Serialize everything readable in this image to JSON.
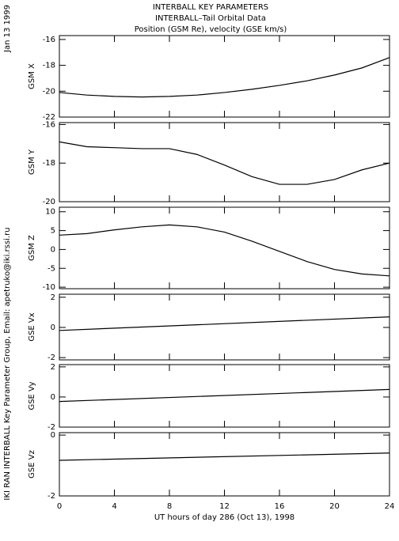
{
  "header": {
    "title": "INTERBALL KEY PARAMETERS",
    "subtitle": "INTERBALL–Tail Orbital Data",
    "description": "Position (GSM Re), velocity (GSE km/s)",
    "date": "Jan 13 1999",
    "credit": "IKI RAN INTERBALL Key Parameter Group, Email: apetruko@iki.rssi.ru"
  },
  "chart_data": [
    {
      "type": "line",
      "y_label": "GSM X",
      "x": [
        0,
        2,
        4,
        6,
        8,
        10,
        12,
        14,
        16,
        18,
        20,
        22,
        24
      ],
      "values": [
        -20.1,
        -20.3,
        -20.4,
        -20.45,
        -20.4,
        -20.3,
        -20.1,
        -19.85,
        -19.55,
        -19.2,
        -18.75,
        -18.2,
        -17.4
      ],
      "xlim": [
        0,
        24
      ],
      "xticks": [
        0,
        4,
        8,
        12,
        16,
        20,
        24
      ],
      "ylim": [
        -22,
        -15.7
      ],
      "yticks": [
        -16,
        -18,
        -20,
        -22
      ],
      "color": "#000000"
    },
    {
      "type": "line",
      "y_label": "GSM Y",
      "x": [
        0,
        2,
        4,
        6,
        8,
        10,
        12,
        14,
        16,
        18,
        20,
        22,
        24
      ],
      "values": [
        -16.9,
        -17.15,
        -17.2,
        -17.25,
        -17.25,
        -17.55,
        -18.1,
        -18.7,
        -19.1,
        -19.1,
        -18.85,
        -18.35,
        -18.0
      ],
      "xlim": [
        0,
        24
      ],
      "xticks": [
        0,
        4,
        8,
        12,
        16,
        20,
        24
      ],
      "ylim": [
        -20,
        -15.9
      ],
      "yticks": [
        -16,
        -18,
        -20
      ],
      "color": "#000000"
    },
    {
      "type": "line",
      "y_label": "GSM Z",
      "x": [
        0,
        2,
        4,
        6,
        8,
        10,
        12,
        14,
        16,
        18,
        20,
        22,
        24
      ],
      "values": [
        3.8,
        4.2,
        5.2,
        6,
        6.5,
        6,
        4.6,
        2.2,
        -0.5,
        -3.2,
        -5.3,
        -6.5,
        -7.0
      ],
      "xlim": [
        0,
        24
      ],
      "xticks": [
        0,
        4,
        8,
        12,
        16,
        20,
        24
      ],
      "ylim": [
        -10.4,
        11.2
      ],
      "yticks": [
        10,
        5,
        0,
        -5,
        -10
      ],
      "color": "#000000"
    },
    {
      "type": "line",
      "y_label": "GSE Vx",
      "x": [
        0,
        24
      ],
      "values": [
        -0.2,
        0.7
      ],
      "xlim": [
        0,
        24
      ],
      "xticks": [
        0,
        4,
        8,
        12,
        16,
        20,
        24
      ],
      "ylim": [
        -2.15,
        2.2
      ],
      "yticks": [
        2,
        0,
        -2
      ],
      "color": "#000000"
    },
    {
      "type": "line",
      "y_label": "GSE Vy",
      "x": [
        0,
        24
      ],
      "values": [
        -0.3,
        0.5
      ],
      "xlim": [
        0,
        24
      ],
      "xticks": [
        0,
        4,
        8,
        12,
        16,
        20,
        24
      ],
      "ylim": [
        -2,
        2.15
      ],
      "yticks": [
        2,
        0,
        -2
      ],
      "color": "#000000"
    },
    {
      "type": "line",
      "y_label": "GSE Vz",
      "x": [
        0,
        24
      ],
      "values": [
        -0.83,
        -0.59
      ],
      "xlim": [
        0,
        24
      ],
      "xticks": [
        0,
        4,
        8,
        12,
        16,
        20,
        24
      ],
      "x_label": "UT hours of day 286 (Oct 13), 1998",
      "ylim": [
        -2,
        0.08
      ],
      "yticks": [
        0,
        -2
      ],
      "color": "#000000"
    }
  ]
}
